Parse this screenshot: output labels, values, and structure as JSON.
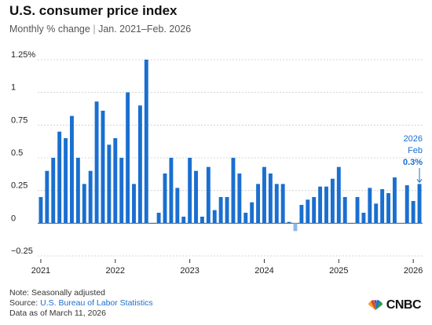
{
  "header": {
    "title": "U.S. consumer price index",
    "subtitle_left": "Monthly % change",
    "subtitle_sep": "|",
    "subtitle_right": "Jan. 2021–Feb. 2026"
  },
  "footer": {
    "note": "Note: Seasonally adjusted",
    "source_label": "Source: ",
    "source_name": "U.S. Bureau of Labor Statistics",
    "data_as_of": "Data as of March 11, 2026"
  },
  "logo": {
    "wordmark": "CNBC"
  },
  "colors": {
    "bar": "#1a6fd0",
    "negative_bar": "#8fb8e8",
    "grid": "#c9c9c9",
    "text": "#1f1f1f"
  },
  "chart_data": {
    "type": "bar",
    "title": "U.S. consumer price index",
    "subtitle": "Monthly % change | Jan. 2021–Feb. 2026",
    "ylim": [
      -0.25,
      1.25
    ],
    "yticks": [
      -0.25,
      0,
      0.25,
      0.5,
      0.75,
      1,
      1.25
    ],
    "ytick_labels": [
      "−0.25",
      "0",
      "0.25",
      "0.5",
      "0.75",
      "1",
      "1.25%"
    ],
    "xtick_labels": [
      "2021",
      "2022",
      "2023",
      "2024",
      "2025",
      "2026"
    ],
    "grid": true,
    "annotation": {
      "line1": "2026",
      "line2": "Feb",
      "value": "0.3%"
    },
    "x": [
      "2021-01",
      "2021-02",
      "2021-03",
      "2021-04",
      "2021-05",
      "2021-06",
      "2021-07",
      "2021-08",
      "2021-09",
      "2021-10",
      "2021-11",
      "2021-12",
      "2022-01",
      "2022-02",
      "2022-03",
      "2022-04",
      "2022-05",
      "2022-06",
      "2022-07",
      "2022-08",
      "2022-09",
      "2022-10",
      "2022-11",
      "2022-12",
      "2023-01",
      "2023-02",
      "2023-03",
      "2023-04",
      "2023-05",
      "2023-06",
      "2023-07",
      "2023-08",
      "2023-09",
      "2023-10",
      "2023-11",
      "2023-12",
      "2024-01",
      "2024-02",
      "2024-03",
      "2024-04",
      "2024-05",
      "2024-06",
      "2024-07",
      "2024-08",
      "2024-09",
      "2024-10",
      "2024-11",
      "2024-12",
      "2025-01",
      "2025-02",
      "2025-03",
      "2025-04",
      "2025-05",
      "2025-06",
      "2025-07",
      "2025-08",
      "2025-09",
      "2025-10",
      "2025-11",
      "2025-12",
      "2026-01",
      "2026-02"
    ],
    "values": [
      0.2,
      0.4,
      0.5,
      0.7,
      0.65,
      0.82,
      0.5,
      0.3,
      0.4,
      0.93,
      0.86,
      0.6,
      0.65,
      0.5,
      1.0,
      0.3,
      0.9,
      1.25,
      0.0,
      0.08,
      0.38,
      0.5,
      0.27,
      0.05,
      0.5,
      0.4,
      0.05,
      0.43,
      0.1,
      0.2,
      0.2,
      0.5,
      0.38,
      0.08,
      0.16,
      0.3,
      0.43,
      0.38,
      0.3,
      0.3,
      0.01,
      -0.06,
      0.14,
      0.18,
      0.2,
      0.28,
      0.28,
      0.34,
      0.43,
      0.2,
      -0.0,
      0.2,
      0.08,
      0.27,
      0.15,
      0.26,
      0.23,
      0.35,
      null,
      0.29,
      0.17,
      0.3
    ]
  }
}
